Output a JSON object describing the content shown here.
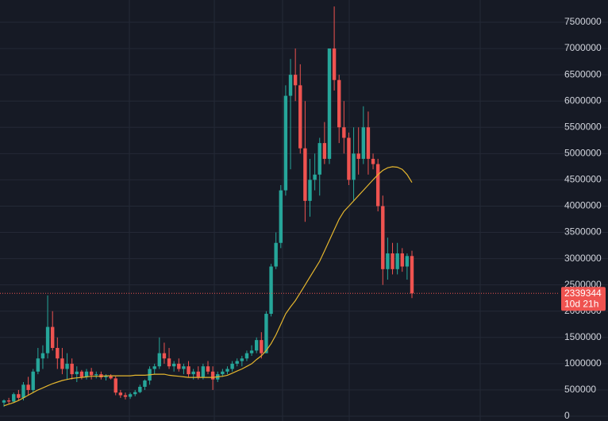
{
  "chart_data": {
    "type": "candlestick",
    "open": [
      260000,
      300000,
      280000,
      420000,
      350000,
      600000,
      500000,
      850000,
      1100000,
      1200000,
      1700000,
      1300000,
      1100000,
      900000,
      1000000,
      800000,
      850000,
      750000,
      850000,
      780000,
      800000,
      740000,
      760000,
      720000,
      450000,
      400000,
      370000,
      420000,
      460000,
      560000,
      680000,
      900000,
      950000,
      1200000,
      1100000,
      950000,
      1000000,
      900000,
      950000,
      800000,
      850000,
      750000,
      950000,
      850000,
      700000,
      800000,
      850000,
      900000,
      1000000,
      1050000,
      1100000,
      1200000,
      1250000,
      1450000,
      1200000,
      1950000,
      2850000,
      3300000,
      4300000,
      6100000,
      6500000,
      6300000,
      5100000,
      4100000,
      4500000,
      4600000,
      5200000,
      4900000,
      7000000,
      6400000,
      5500000,
      5300000,
      4500000,
      5000000,
      4900000,
      5500000,
      4900000,
      4800000,
      4000000,
      2800000,
      3100000,
      2800000,
      3100000,
      2850000,
      3050000
    ],
    "high": [
      320000,
      350000,
      450000,
      500000,
      650000,
      750000,
      900000,
      1300000,
      1350000,
      2300000,
      2000000,
      1500000,
      1300000,
      1200000,
      1100000,
      950000,
      880000,
      900000,
      920000,
      850000,
      850000,
      800000,
      800000,
      760000,
      500000,
      450000,
      450000,
      500000,
      600000,
      700000,
      950000,
      1000000,
      1500000,
      1400000,
      1300000,
      1050000,
      1100000,
      1000000,
      1050000,
      900000,
      950000,
      1000000,
      1050000,
      950000,
      850000,
      900000,
      950000,
      1050000,
      1100000,
      1150000,
      1250000,
      1350000,
      1500000,
      1600000,
      2000000,
      2900000,
      3500000,
      4400000,
      6300000,
      6800000,
      7000000,
      6700000,
      6000000,
      4900000,
      5000000,
      5300000,
      5600000,
      7000000,
      7800000,
      6500000,
      6000000,
      5400000,
      5500000,
      5500000,
      5900000,
      5800000,
      5000000,
      4900000,
      4200000,
      3400000,
      3300000,
      3300000,
      3200000,
      3100000,
      3150000
    ],
    "low": [
      180000,
      240000,
      260000,
      300000,
      300000,
      400000,
      450000,
      800000,
      900000,
      1100000,
      1250000,
      900000,
      800000,
      700000,
      700000,
      650000,
      700000,
      700000,
      700000,
      720000,
      700000,
      680000,
      700000,
      400000,
      350000,
      320000,
      330000,
      380000,
      440000,
      500000,
      600000,
      800000,
      900000,
      1000000,
      900000,
      850000,
      850000,
      800000,
      750000,
      700000,
      700000,
      700000,
      800000,
      500000,
      650000,
      750000,
      800000,
      850000,
      950000,
      950000,
      1050000,
      1150000,
      1200000,
      1100000,
      1200000,
      1900000,
      2800000,
      3200000,
      4200000,
      4700000,
      6000000,
      5000000,
      3700000,
      3800000,
      4300000,
      4200000,
      4800000,
      4800000,
      6200000,
      5200000,
      5000000,
      4400000,
      4100000,
      4600000,
      4800000,
      4600000,
      4700000,
      3900000,
      2500000,
      2600000,
      2700000,
      2700000,
      2750000,
      2600000,
      2250000
    ],
    "close": [
      300000,
      280000,
      420000,
      350000,
      600000,
      500000,
      850000,
      1100000,
      1200000,
      1700000,
      1300000,
      1100000,
      900000,
      1000000,
      800000,
      850000,
      750000,
      850000,
      780000,
      800000,
      740000,
      760000,
      720000,
      450000,
      400000,
      370000,
      420000,
      460000,
      560000,
      680000,
      900000,
      950000,
      1200000,
      1100000,
      950000,
      1000000,
      900000,
      950000,
      800000,
      850000,
      750000,
      950000,
      850000,
      700000,
      800000,
      850000,
      900000,
      1000000,
      1050000,
      1100000,
      1200000,
      1250000,
      1450000,
      1200000,
      1950000,
      2850000,
      3300000,
      4300000,
      6100000,
      6500000,
      6300000,
      5100000,
      4100000,
      4500000,
      4600000,
      5200000,
      4900000,
      7000000,
      6400000,
      5500000,
      5300000,
      4500000,
      5000000,
      4900000,
      5500000,
      4900000,
      4800000,
      4000000,
      2800000,
      3100000,
      2800000,
      3100000,
      2850000,
      3050000,
      2339344
    ],
    "moving_average": [
      200000,
      230000,
      260000,
      300000,
      350000,
      400000,
      450000,
      500000,
      540000,
      580000,
      620000,
      650000,
      680000,
      700000,
      720000,
      730000,
      740000,
      750000,
      760000,
      760000,
      760000,
      770000,
      770000,
      770000,
      770000,
      770000,
      770000,
      780000,
      780000,
      780000,
      790000,
      800000,
      800000,
      800000,
      780000,
      770000,
      760000,
      750000,
      740000,
      740000,
      740000,
      740000,
      740000,
      740000,
      750000,
      760000,
      780000,
      820000,
      860000,
      900000,
      950000,
      1000000,
      1080000,
      1150000,
      1250000,
      1380000,
      1550000,
      1750000,
      1950000,
      2080000,
      2200000,
      2350000,
      2500000,
      2650000,
      2800000,
      2950000,
      3150000,
      3350000,
      3550000,
      3750000,
      3900000,
      4000000,
      4100000,
      4200000,
      4300000,
      4400000,
      4500000,
      4600000,
      4680000,
      4730000,
      4750000,
      4740000,
      4700000,
      4600000,
      4450000
    ],
    "up_color": "#26a69a",
    "down_color": "#ef5350",
    "ma_color": "#e5b62e",
    "countdown": "10d 21h",
    "ylim": [
      0,
      7500000
    ],
    "yticks": [
      0,
      500000,
      1000000,
      1500000,
      2000000,
      2500000,
      3000000,
      3500000,
      4000000,
      4500000,
      5000000,
      5500000,
      6000000,
      6500000,
      7000000,
      7500000
    ],
    "grid": true
  }
}
